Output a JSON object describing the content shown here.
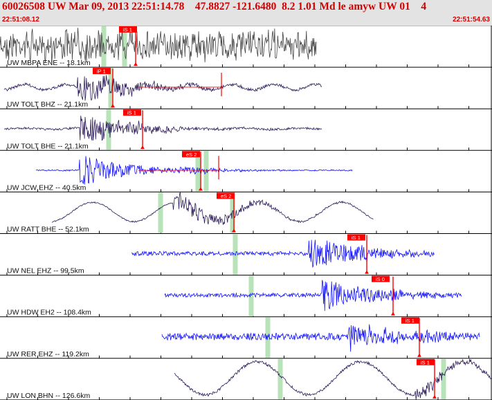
{
  "header": {
    "title": "60026508 UW Mar 09, 2013 22:51:14.78    47.8827 -121.6480  8.2 1.01 Md le amyw UW 01    4",
    "start_time": "22:51:08.12",
    "end_time": "22:51:54.63"
  },
  "colors": {
    "header_bg": "#e3e3e3",
    "header_text": "#d40000",
    "trace_dark": "#444444",
    "trace_purple": "#2c1a5a",
    "trace_blue": "#1010ff",
    "pick_red": "#ff0000",
    "predicted_green": "#b8e2b8",
    "divider": "#000000"
  },
  "traces": [
    {
      "label": "UW MBPA ENE -- 18.1km",
      "color": "dark",
      "picks": [
        {
          "label": "iS 1"
        }
      ]
    },
    {
      "label": "UW TOLT BHZ -- 21.1km",
      "color": "purple",
      "picks": [
        {
          "label": "iP 1"
        }
      ]
    },
    {
      "label": "UW TOLT BHE -- 21.1km",
      "color": "purple",
      "picks": [
        {
          "label": "iS 1"
        }
      ]
    },
    {
      "label": "UW JCW EHZ -- 40.5km",
      "color": "blue",
      "picks": [
        {
          "label": "eS 2"
        }
      ]
    },
    {
      "label": "UW RATT BHE -- 52.1km",
      "color": "purple",
      "picks": [
        {
          "label": "eS 2"
        }
      ]
    },
    {
      "label": "UW NEL EHZ -- 99.5km",
      "color": "blue",
      "picks": [
        {
          "label": "iS 1"
        }
      ]
    },
    {
      "label": "UW HDW EH2 -- 108.4km",
      "color": "blue",
      "picks": [
        {
          "label": "iS 0"
        }
      ]
    },
    {
      "label": "UW RER EHZ -- 119.2km",
      "color": "blue",
      "picks": [
        {
          "label": "iS 1"
        }
      ]
    },
    {
      "label": "UW LON BHN -- 126.6km",
      "color": "purple",
      "picks": [
        {
          "label": "iS 1"
        }
      ]
    }
  ]
}
